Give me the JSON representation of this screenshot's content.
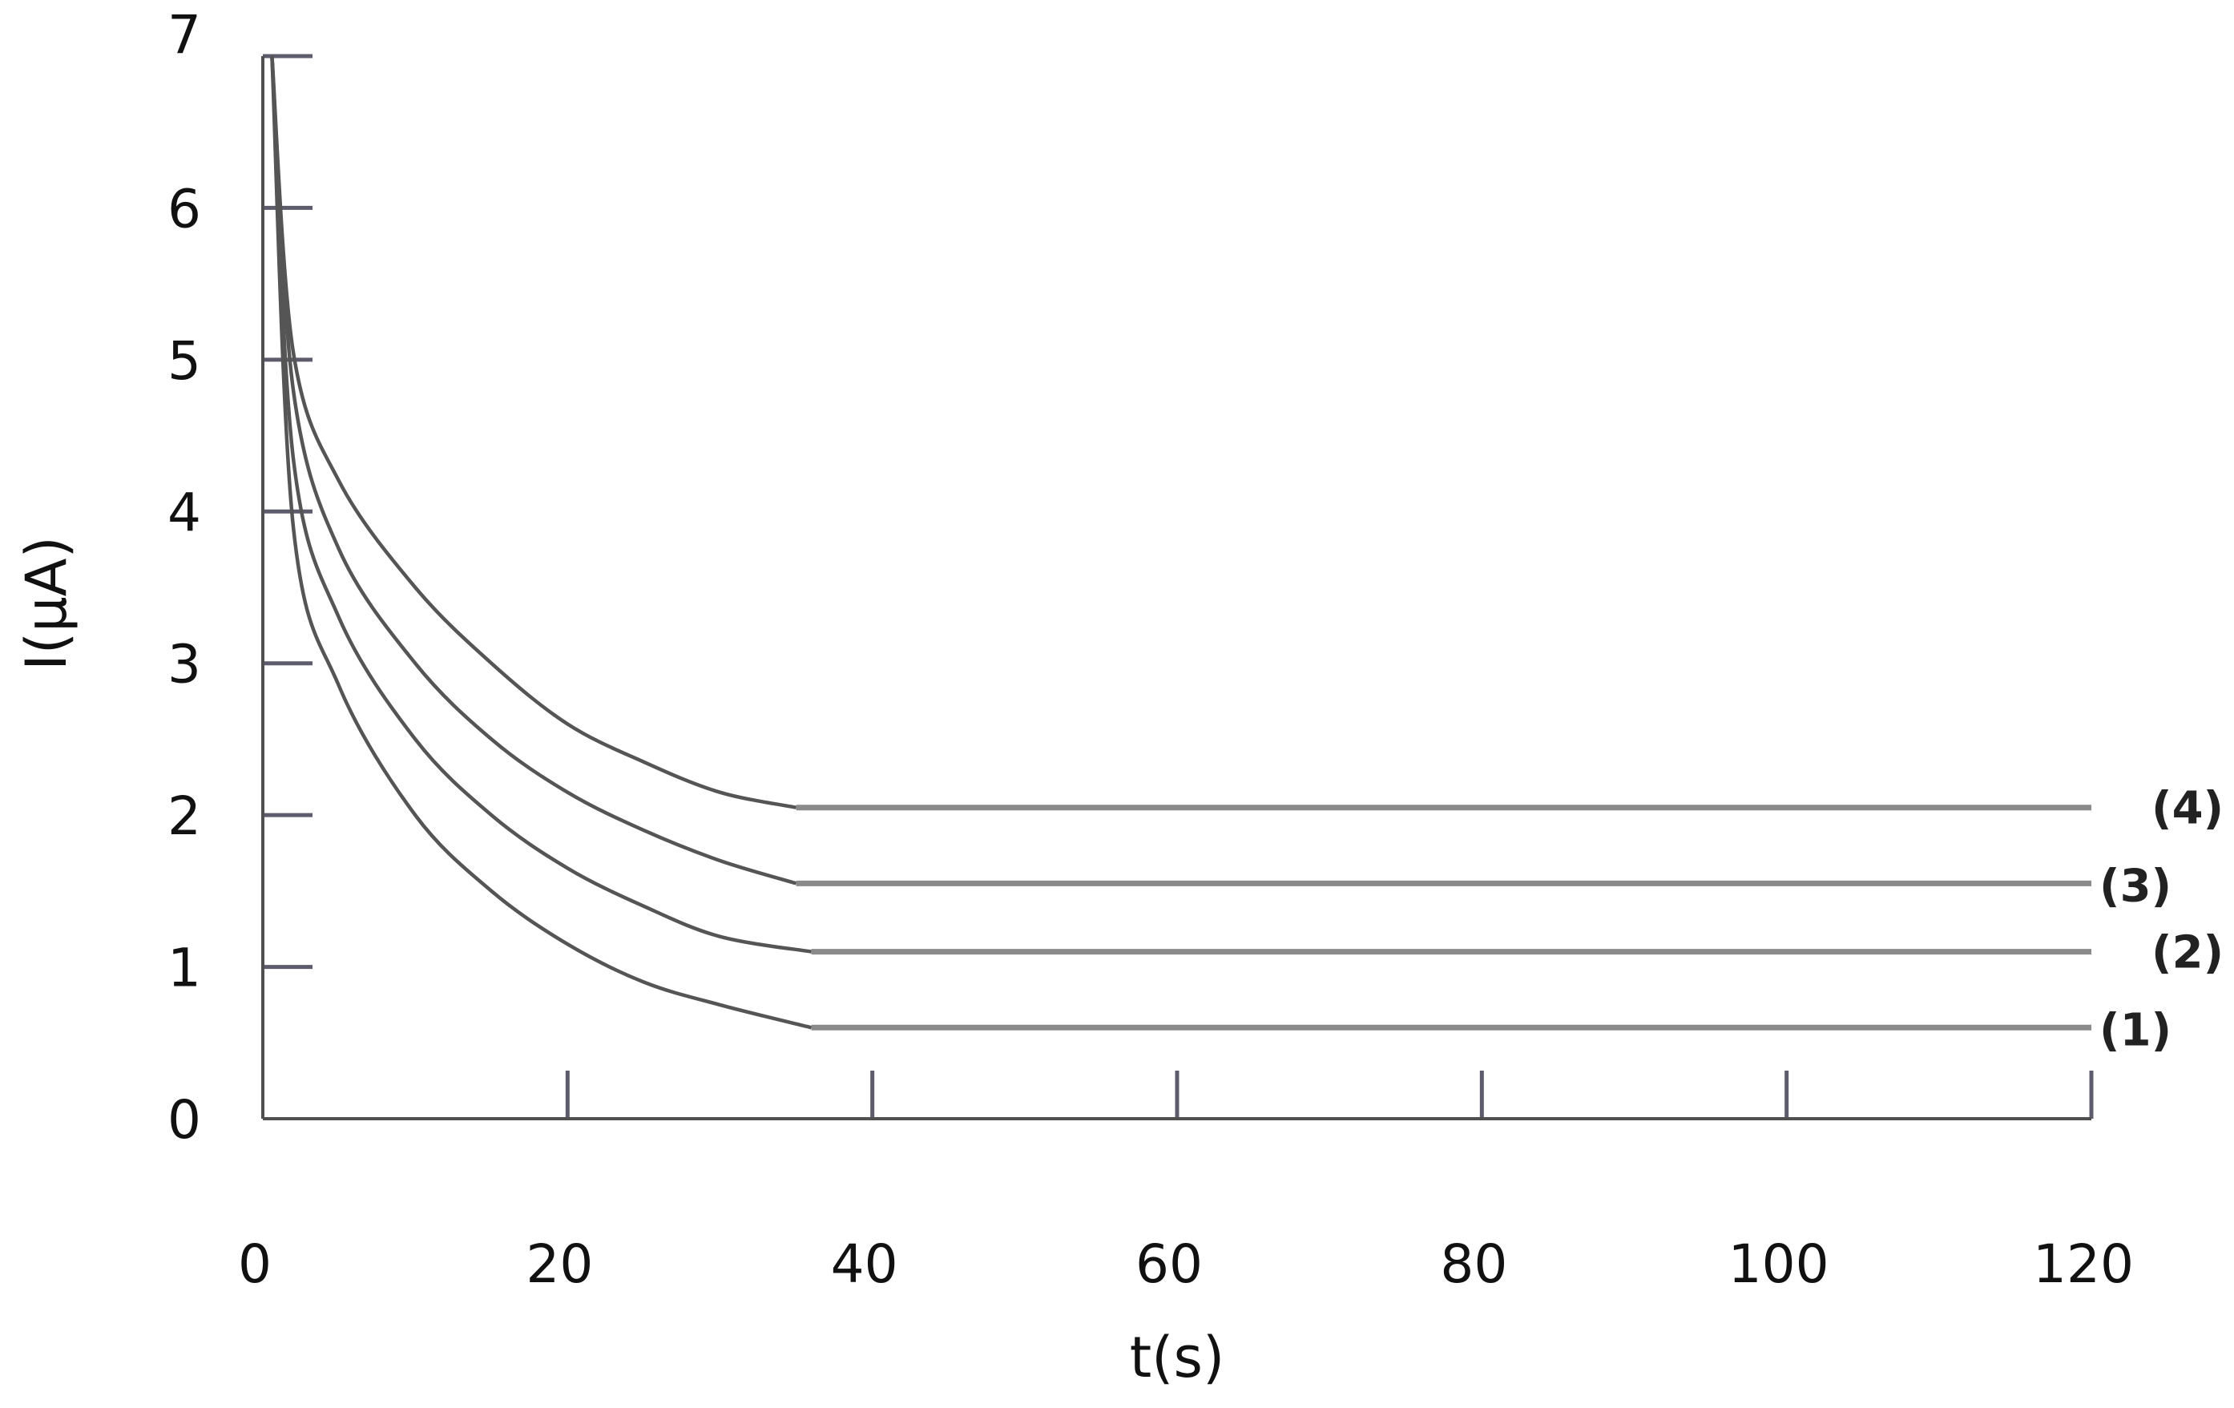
{
  "chart_data": {
    "type": "line",
    "title": "",
    "xlabel": "t(s)",
    "ylabel": "I(μA)",
    "xlim": [
      0,
      120
    ],
    "ylim": [
      0,
      7
    ],
    "x_ticks": [
      0,
      20,
      40,
      60,
      80,
      100,
      120
    ],
    "y_ticks": [
      0,
      1,
      2,
      3,
      4,
      5,
      6,
      7
    ],
    "grid": false,
    "legend": "none",
    "series": [
      {
        "name": "(1)",
        "x": [
          0.6,
          2,
          5,
          10,
          15,
          20,
          25,
          30,
          36,
          120
        ],
        "y": [
          7.0,
          3.9,
          2.85,
          2.0,
          1.5,
          1.15,
          0.9,
          0.75,
          0.6,
          0.6
        ]
      },
      {
        "name": "(2)",
        "x": [
          0.6,
          2,
          5,
          10,
          15,
          20,
          25,
          30,
          36,
          120
        ],
        "y": [
          7.0,
          4.35,
          3.3,
          2.5,
          2.0,
          1.65,
          1.4,
          1.2,
          1.1,
          1.1
        ]
      },
      {
        "name": "(3)",
        "x": [
          0.6,
          2,
          5,
          10,
          15,
          20,
          25,
          30,
          35,
          120
        ],
        "y": [
          7.0,
          4.8,
          3.75,
          3.0,
          2.5,
          2.15,
          1.9,
          1.7,
          1.55,
          1.55
        ]
      },
      {
        "name": "(4)",
        "x": [
          0.6,
          2,
          5,
          10,
          15,
          20,
          25,
          30,
          35,
          120
        ],
        "y": [
          7.0,
          5.05,
          4.2,
          3.5,
          3.0,
          2.6,
          2.35,
          2.15,
          2.05,
          2.05
        ]
      }
    ],
    "flat_from_x": [
      36,
      36,
      35,
      35
    ]
  }
}
